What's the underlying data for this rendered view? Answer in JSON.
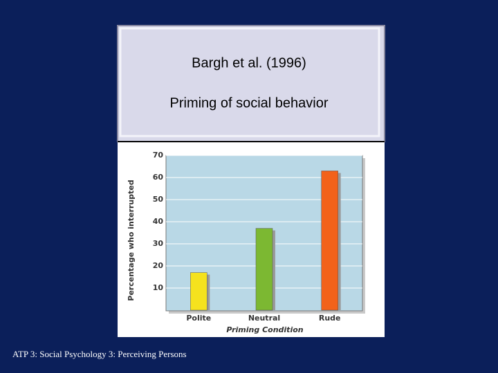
{
  "chart_data": {
    "type": "bar",
    "title": "Bargh et al. (1996)",
    "subtitle": "Priming of social behavior",
    "x_label": "Priming Condition",
    "y_label": "Percentage who interrupted",
    "categories": [
      "Polite",
      "Neutral",
      "Rude"
    ],
    "values": [
      17,
      37,
      63
    ],
    "colors": [
      "#f5e21e",
      "#7cb832",
      "#f2621a"
    ],
    "ylim": [
      0,
      70
    ],
    "yticks": [
      10,
      20,
      30,
      40,
      50,
      60,
      70
    ],
    "grid": true
  },
  "footer": "ATP 3: Social Psychology 3: Perceiving Persons"
}
